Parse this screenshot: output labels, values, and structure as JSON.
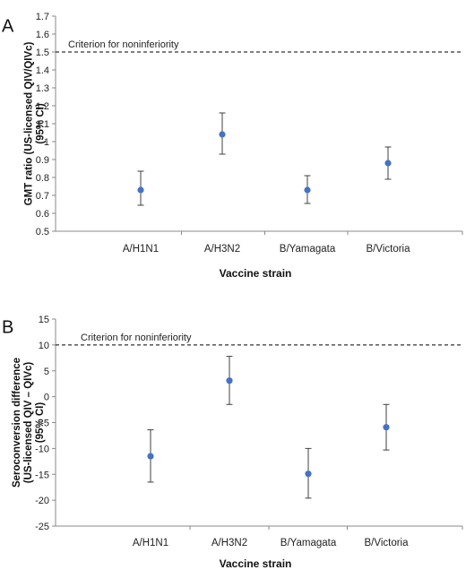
{
  "chart_data": [
    {
      "panel_label": "A",
      "type": "scatter",
      "categories": [
        "A/H1N1",
        "A/H3N2",
        "B/Yamagata",
        "B/Victoria"
      ],
      "values": [
        0.73,
        1.04,
        0.73,
        0.88
      ],
      "ci_low": [
        0.645,
        0.93,
        0.655,
        0.79
      ],
      "ci_high": [
        0.835,
        1.16,
        0.81,
        0.97
      ],
      "xlabel": "Vaccine strain",
      "ylabel_lines": [
        "GMT ratio (US-licensed QIV/QIVc)",
        "(95% CI)"
      ],
      "ylim": [
        0.5,
        1.7
      ],
      "yticks": [
        "0.5",
        "0.6",
        "0.7",
        "0.8",
        "0.9",
        "1",
        "1.1",
        "1.2",
        "1.3",
        "1.4",
        "1.5",
        "1.6",
        "1.7"
      ],
      "reference_line": {
        "value": 1.5,
        "label": "Criterion for noninferiority",
        "style": "dashed"
      },
      "marker_color": "#4472c4",
      "errorbar_color": "#404040",
      "grid": false
    },
    {
      "panel_label": "B",
      "type": "scatter",
      "categories": [
        "A/H1N1",
        "A/H3N2",
        "B/Yamagata",
        "B/Victoria"
      ],
      "values": [
        -11.5,
        3.1,
        -14.9,
        -5.9
      ],
      "ci_low": [
        -16.5,
        -1.5,
        -19.6,
        -10.3
      ],
      "ci_high": [
        -6.4,
        7.8,
        -10.0,
        -1.5
      ],
      "xlabel": "Vaccine strain",
      "ylabel_lines": [
        "Seroconversion difference",
        "(US-licensed QIV – QIVc)",
        "(95% CI)"
      ],
      "ylim": [
        -25,
        15
      ],
      "yticks": [
        "-25",
        "-20",
        "-15",
        "-10",
        "-5",
        "0",
        "5",
        "10",
        "15"
      ],
      "reference_line": {
        "value": 10,
        "label": "Criterion for noninferiority",
        "style": "dashed"
      },
      "marker_color": "#4472c4",
      "errorbar_color": "#404040",
      "grid": false
    }
  ]
}
